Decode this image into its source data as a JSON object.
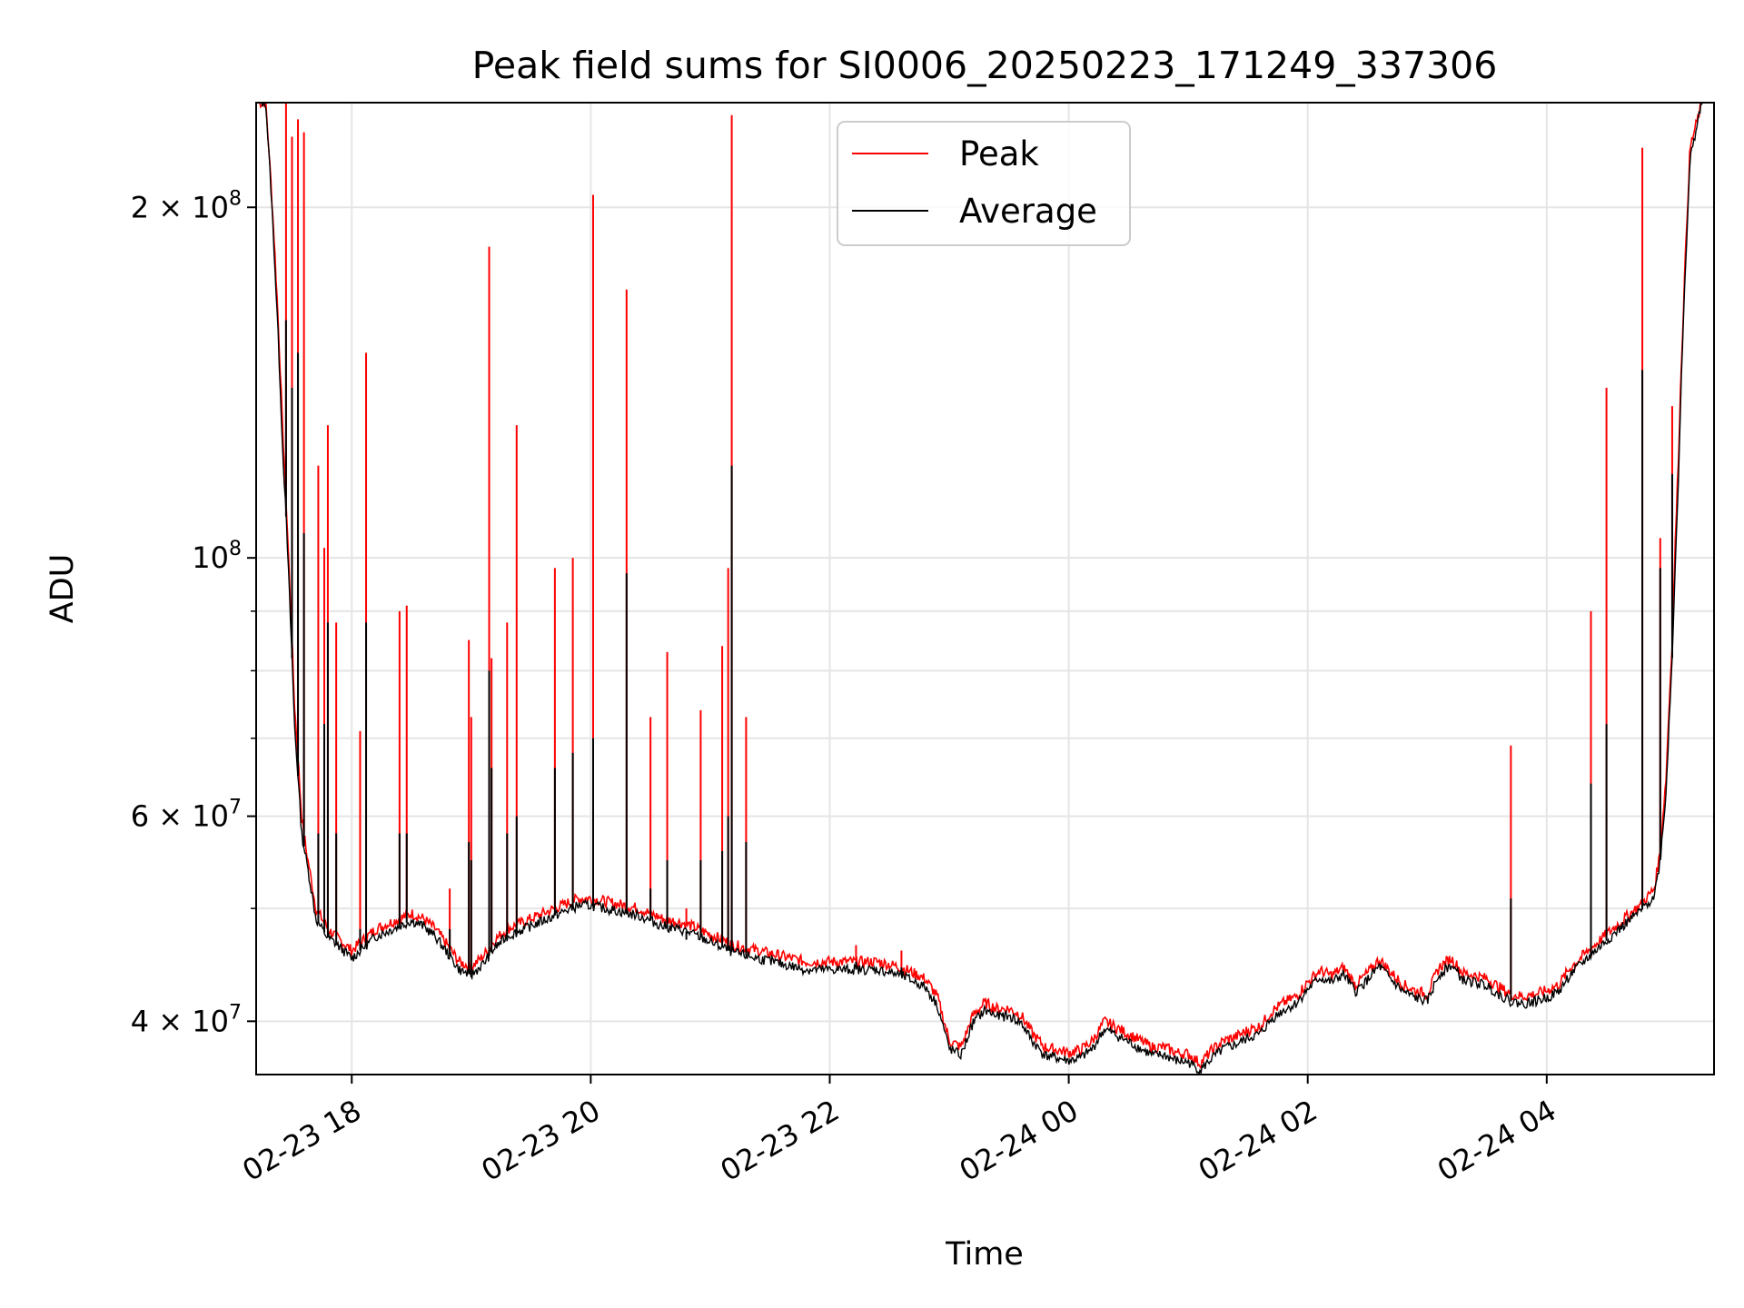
{
  "chart_data": {
    "type": "line",
    "title": "Peak field sums for SI0006_20250223_171249_337306",
    "xlabel": "Time",
    "ylabel": "ADU",
    "xlim": [
      17.2,
      29.4
    ],
    "ylim": [
      36000000,
      246000000
    ],
    "yscale": "log",
    "grid": true,
    "legend": {
      "placement": "top-center",
      "entries": [
        {
          "name": "Peak",
          "color": "#ff0000"
        },
        {
          "name": "Average",
          "color": "#000000"
        }
      ]
    },
    "x_ticks": [
      {
        "value": 18,
        "label": "02-23 18"
      },
      {
        "value": 20,
        "label": "02-23 20"
      },
      {
        "value": 22,
        "label": "02-23 22"
      },
      {
        "value": 24,
        "label": "02-24 00"
      },
      {
        "value": 26,
        "label": "02-24 02"
      },
      {
        "value": 28,
        "label": "02-24 04"
      }
    ],
    "y_ticks": [
      {
        "value": 40000000,
        "mant": "4",
        "exp": "7"
      },
      {
        "value": 60000000,
        "mant": "6",
        "exp": "7"
      },
      {
        "value": 100000000,
        "mant": "",
        "exp": "8"
      },
      {
        "value": 200000000,
        "mant": "2",
        "exp": "8"
      }
    ],
    "y_minor_ticks": [
      50000000,
      70000000,
      80000000,
      90000000
    ],
    "series": [
      {
        "name": "Peak",
        "color": "#ff0000",
        "x": [
          17.22,
          17.28,
          17.36,
          17.42,
          17.48,
          17.52,
          17.58,
          17.62,
          17.66,
          17.7,
          17.75,
          17.8,
          17.85,
          17.9,
          17.95,
          18.0,
          18.1,
          18.2,
          18.3,
          18.4,
          18.5,
          18.6,
          18.7,
          18.8,
          18.9,
          19.0,
          19.1,
          19.2,
          19.3,
          19.4,
          19.5,
          19.6,
          19.7,
          19.8,
          19.9,
          20.0,
          20.2,
          20.4,
          20.6,
          20.8,
          21.0,
          21.2,
          21.4,
          21.6,
          21.8,
          22.0,
          22.2,
          22.4,
          22.6,
          22.8,
          22.9,
          23.0,
          23.1,
          23.2,
          23.3,
          23.4,
          23.5,
          23.6,
          23.7,
          23.8,
          23.9,
          24.0,
          24.1,
          24.2,
          24.3,
          24.4,
          24.5,
          24.6,
          24.7,
          24.8,
          24.9,
          25.0,
          25.1,
          25.2,
          25.3,
          25.4,
          25.5,
          25.6,
          25.7,
          25.8,
          25.9,
          26.0,
          26.1,
          26.2,
          26.3,
          26.4,
          26.5,
          26.6,
          26.7,
          26.8,
          26.9,
          27.0,
          27.1,
          27.2,
          27.3,
          27.4,
          27.5,
          27.6,
          27.7,
          27.8,
          27.9,
          28.0,
          28.1,
          28.2,
          28.3,
          28.4,
          28.5,
          28.6,
          28.7,
          28.8,
          28.9,
          28.95,
          29.0,
          29.05,
          29.1,
          29.15,
          29.2,
          29.3
        ],
        "y": [
          246000000,
          246000000,
          180000000,
          130000000,
          95000000,
          75000000,
          60000000,
          56000000,
          53000000,
          50000000,
          49000000,
          48000000,
          47500000,
          47000000,
          46500000,
          46000000,
          47000000,
          48000000,
          48500000,
          49000000,
          49500000,
          49000000,
          48000000,
          46500000,
          45000000,
          44500000,
          45500000,
          47000000,
          48000000,
          48500000,
          49000000,
          49500000,
          50000000,
          50500000,
          51000000,
          51000000,
          50500000,
          50000000,
          49000000,
          48500000,
          47500000,
          46500000,
          46000000,
          45500000,
          45000000,
          45000000,
          45000000,
          45000000,
          44500000,
          43500000,
          42000000,
          38500000,
          38000000,
          40500000,
          41500000,
          41000000,
          41000000,
          40500000,
          39000000,
          38000000,
          37800000,
          37600000,
          37800000,
          38500000,
          40000000,
          39500000,
          39000000,
          38500000,
          38000000,
          38000000,
          37600000,
          37500000,
          36800000,
          37800000,
          38500000,
          38800000,
          39300000,
          39600000,
          40800000,
          41500000,
          42000000,
          43200000,
          44200000,
          43800000,
          44500000,
          43000000,
          44000000,
          45200000,
          44000000,
          43000000,
          42500000,
          42200000,
          44500000,
          45300000,
          44000000,
          43800000,
          43500000,
          42800000,
          42200000,
          42000000,
          42200000,
          42500000,
          43000000,
          44500000,
          45500000,
          46500000,
          47500000,
          48500000,
          49500000,
          50500000,
          52000000,
          56000000,
          65000000,
          85000000,
          120000000,
          170000000,
          225000000,
          246000000
        ]
      },
      {
        "name": "Average",
        "color": "#000000",
        "x": [
          17.22,
          17.28,
          17.36,
          17.42,
          17.48,
          17.52,
          17.58,
          17.62,
          17.66,
          17.7,
          17.75,
          17.8,
          17.85,
          17.9,
          17.95,
          18.0,
          18.1,
          18.2,
          18.3,
          18.4,
          18.5,
          18.6,
          18.7,
          18.8,
          18.9,
          19.0,
          19.1,
          19.2,
          19.3,
          19.4,
          19.5,
          19.6,
          19.7,
          19.8,
          19.9,
          20.0,
          20.2,
          20.4,
          20.6,
          20.8,
          21.0,
          21.2,
          21.4,
          21.6,
          21.8,
          22.0,
          22.2,
          22.4,
          22.6,
          22.8,
          22.9,
          23.0,
          23.1,
          23.2,
          23.3,
          23.4,
          23.5,
          23.6,
          23.7,
          23.8,
          23.9,
          24.0,
          24.1,
          24.2,
          24.3,
          24.4,
          24.5,
          24.6,
          24.7,
          24.8,
          24.9,
          25.0,
          25.1,
          25.2,
          25.3,
          25.4,
          25.5,
          25.6,
          25.7,
          25.8,
          25.9,
          26.0,
          26.1,
          26.2,
          26.3,
          26.4,
          26.5,
          26.6,
          26.7,
          26.8,
          26.9,
          27.0,
          27.1,
          27.2,
          27.3,
          27.4,
          27.5,
          27.6,
          27.7,
          27.8,
          27.9,
          28.0,
          28.1,
          28.2,
          28.3,
          28.4,
          28.5,
          28.6,
          28.7,
          28.8,
          28.9,
          28.95,
          29.0,
          29.05,
          29.1,
          29.15,
          29.2,
          29.3
        ],
        "y": [
          246000000,
          246000000,
          175000000,
          125000000,
          92000000,
          72000000,
          58000000,
          55000000,
          52000000,
          49000000,
          48000000,
          47200000,
          46800000,
          46300000,
          45800000,
          45300000,
          46300000,
          47300000,
          47800000,
          48300000,
          48800000,
          48300000,
          47300000,
          45800000,
          44300000,
          43800000,
          44800000,
          46300000,
          47300000,
          47800000,
          48300000,
          48800000,
          49300000,
          49800000,
          50300000,
          50300000,
          49800000,
          49300000,
          48300000,
          47800000,
          46800000,
          45800000,
          45300000,
          44800000,
          44300000,
          44300000,
          44300000,
          44300000,
          43800000,
          42800000,
          41300000,
          37900000,
          37400000,
          39900000,
          40900000,
          40400000,
          40400000,
          39900000,
          38400000,
          37400000,
          37200000,
          37000000,
          37200000,
          37900000,
          39400000,
          38900000,
          38400000,
          37900000,
          37400000,
          37400000,
          37000000,
          36900000,
          36300000,
          37200000,
          37900000,
          38200000,
          38700000,
          39000000,
          40200000,
          40900000,
          41400000,
          42600000,
          43600000,
          43200000,
          43900000,
          42400000,
          43400000,
          44600000,
          43400000,
          42400000,
          41900000,
          41600000,
          43900000,
          44700000,
          43400000,
          43200000,
          42900000,
          42200000,
          41600000,
          41400000,
          41600000,
          41900000,
          42400000,
          43900000,
          44900000,
          45900000,
          46900000,
          47900000,
          48900000,
          49900000,
          51300000,
          55000000,
          63000000,
          82000000,
          115000000,
          165000000,
          220000000,
          246000000
        ]
      }
    ],
    "spikes": [
      {
        "x": 17.45,
        "peak": 246000000,
        "avg": 160000000
      },
      {
        "x": 17.5,
        "peak": 230000000,
        "avg": 140000000
      },
      {
        "x": 17.55,
        "peak": 238000000,
        "avg": 150000000
      },
      {
        "x": 17.6,
        "peak": 232000000,
        "avg": 105000000
      },
      {
        "x": 17.72,
        "peak": 120000000,
        "avg": 58000000
      },
      {
        "x": 17.77,
        "peak": 102000000,
        "avg": 72000000
      },
      {
        "x": 17.8,
        "peak": 130000000,
        "avg": 88000000
      },
      {
        "x": 17.87,
        "peak": 88000000,
        "avg": 58000000
      },
      {
        "x": 18.07,
        "peak": 71000000,
        "avg": 48000000
      },
      {
        "x": 18.12,
        "peak": 150000000,
        "avg": 88000000
      },
      {
        "x": 18.4,
        "peak": 90000000,
        "avg": 58000000
      },
      {
        "x": 18.46,
        "peak": 91000000,
        "avg": 58000000
      },
      {
        "x": 18.82,
        "peak": 52000000,
        "avg": 48000000
      },
      {
        "x": 18.98,
        "peak": 85000000,
        "avg": 57000000
      },
      {
        "x": 19.0,
        "peak": 73000000,
        "avg": 55000000
      },
      {
        "x": 19.15,
        "peak": 185000000,
        "avg": 80000000
      },
      {
        "x": 19.17,
        "peak": 82000000,
        "avg": 66000000
      },
      {
        "x": 19.3,
        "peak": 88000000,
        "avg": 58000000
      },
      {
        "x": 19.38,
        "peak": 130000000,
        "avg": 60000000
      },
      {
        "x": 19.7,
        "peak": 98000000,
        "avg": 66000000
      },
      {
        "x": 19.85,
        "peak": 100000000,
        "avg": 68000000
      },
      {
        "x": 20.02,
        "peak": 205000000,
        "avg": 70000000
      },
      {
        "x": 20.3,
        "peak": 170000000,
        "avg": 97000000
      },
      {
        "x": 20.5,
        "peak": 73000000,
        "avg": 52000000
      },
      {
        "x": 20.64,
        "peak": 83000000,
        "avg": 55000000
      },
      {
        "x": 20.8,
        "peak": 50000000,
        "avg": 47000000
      },
      {
        "x": 20.92,
        "peak": 74000000,
        "avg": 55000000
      },
      {
        "x": 21.1,
        "peak": 84000000,
        "avg": 56000000
      },
      {
        "x": 21.15,
        "peak": 98000000,
        "avg": 60000000
      },
      {
        "x": 21.18,
        "peak": 240000000,
        "avg": 120000000
      },
      {
        "x": 21.3,
        "peak": 73000000,
        "avg": 57000000
      },
      {
        "x": 22.22,
        "peak": 46500000,
        "avg": 45000000
      },
      {
        "x": 22.6,
        "peak": 46000000,
        "avg": 44500000
      },
      {
        "x": 27.7,
        "peak": 69000000,
        "avg": 51000000
      },
      {
        "x": 28.37,
        "peak": 90000000,
        "avg": 64000000
      },
      {
        "x": 28.5,
        "peak": 140000000,
        "avg": 72000000
      },
      {
        "x": 28.8,
        "peak": 225000000,
        "avg": 145000000
      },
      {
        "x": 28.95,
        "peak": 104000000,
        "avg": 98000000
      },
      {
        "x": 29.05,
        "peak": 135000000,
        "avg": 118000000
      }
    ]
  }
}
